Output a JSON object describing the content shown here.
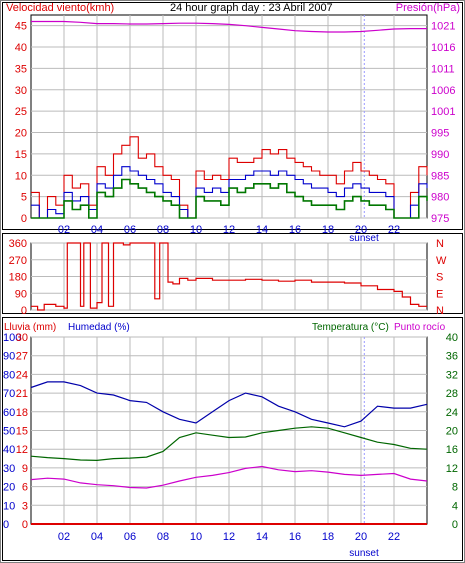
{
  "title": "24 hour graph day : 23 Abril 2007",
  "colors": {
    "wind": "#dd0000",
    "gust": "#dd0000",
    "windAvg": "#0000cc",
    "windGreen": "#007700",
    "pressure": "#cc00cc",
    "direction": "#dd0000",
    "humidity": "#0000aa",
    "temperature": "#006600",
    "dewpoint": "#cc00cc",
    "rain": "#dd0000",
    "grid": "#bbbbbb",
    "axis": "#000000"
  },
  "chart_data": [
    {
      "type": "line",
      "panel": "wind-pressure",
      "title": "24 hour graph day : 23 Abril 2007",
      "ylabel_left": "Velocidad viento(kmh)",
      "ylabel_right": "Presión(hPa)",
      "x_tick_labels": [
        "02",
        "04",
        "06",
        "08",
        "10",
        "12",
        "14",
        "16",
        "18",
        "20",
        "22"
      ],
      "x_tick_hours": [
        2,
        4,
        6,
        8,
        10,
        12,
        14,
        16,
        18,
        20,
        22
      ],
      "x_range_hours": [
        0,
        24
      ],
      "x_extra_label": "sunset",
      "sunset_hour": 20.2,
      "y_left_ticks": [
        0,
        5,
        10,
        15,
        20,
        25,
        30,
        35,
        40,
        45
      ],
      "y_left_range": [
        0,
        47.5
      ],
      "y_right_ticks": [
        975,
        980,
        985,
        990,
        995,
        1001,
        1006,
        1011,
        1016,
        1021
      ],
      "grid": true,
      "series": [
        {
          "role": "gust",
          "x": [
            0,
            0.5,
            1,
            1.5,
            2,
            2.5,
            3,
            3.5,
            4,
            4.5,
            5,
            5.5,
            6,
            6.5,
            7,
            7.5,
            8,
            8.5,
            9,
            9.5,
            10,
            10.5,
            11,
            11.5,
            12,
            12.5,
            13,
            13.5,
            14,
            14.5,
            15,
            15.5,
            16,
            16.5,
            17,
            17.5,
            18,
            18.5,
            19,
            19.5,
            20,
            20.5,
            21,
            21.5,
            22,
            22.5,
            23,
            23.5,
            24
          ],
          "values": [
            6,
            0,
            5,
            3,
            10,
            7,
            8,
            3,
            12,
            10,
            15,
            17,
            19,
            14,
            15,
            12,
            10,
            9,
            3,
            0,
            11,
            9,
            10,
            9,
            14,
            13,
            13,
            14,
            16,
            15,
            16,
            14,
            13,
            12,
            11,
            10,
            10,
            8,
            11,
            13,
            11,
            10,
            9,
            8,
            0,
            0,
            6,
            12,
            10
          ]
        },
        {
          "role": "average",
          "x": [
            0,
            0.5,
            1,
            1.5,
            2,
            2.5,
            3,
            3.5,
            4,
            4.5,
            5,
            5.5,
            6,
            6.5,
            7,
            7.5,
            8,
            8.5,
            9,
            9.5,
            10,
            10.5,
            11,
            11.5,
            12,
            12.5,
            13,
            13.5,
            14,
            14.5,
            15,
            15.5,
            16,
            16.5,
            17,
            17.5,
            18,
            18.5,
            19,
            19.5,
            20,
            20.5,
            21,
            21.5,
            22,
            22.5,
            23,
            23.5,
            24
          ],
          "values": [
            3,
            0,
            2,
            1,
            6,
            4,
            5,
            2,
            8,
            7,
            10,
            12,
            11,
            10,
            9,
            8,
            6,
            5,
            2,
            0,
            7,
            6,
            7,
            6,
            9,
            9,
            10,
            11,
            11,
            10,
            11,
            10,
            9,
            8,
            7,
            7,
            6,
            5,
            7,
            8,
            7,
            6,
            6,
            5,
            0,
            0,
            3,
            8,
            7
          ]
        },
        {
          "role": "low",
          "x": [
            0,
            0.5,
            1,
            1.5,
            2,
            2.5,
            3,
            3.5,
            4,
            4.5,
            5,
            5.5,
            6,
            6.5,
            7,
            7.5,
            8,
            8.5,
            9,
            9.5,
            10,
            10.5,
            11,
            11.5,
            12,
            12.5,
            13,
            13.5,
            14,
            14.5,
            15,
            15.5,
            16,
            16.5,
            17,
            17.5,
            18,
            18.5,
            19,
            19.5,
            20,
            20.5,
            21,
            21.5,
            22,
            22.5,
            23,
            23.5,
            24
          ],
          "values": [
            0,
            0,
            0,
            0,
            4,
            2,
            3,
            0,
            6,
            5,
            7,
            9,
            8,
            7,
            6,
            5,
            4,
            3,
            0,
            0,
            5,
            4,
            4,
            3,
            7,
            6,
            7,
            8,
            8,
            7,
            8,
            6,
            5,
            4,
            3,
            3,
            3,
            2,
            4,
            5,
            4,
            3,
            3,
            2,
            0,
            0,
            0,
            5,
            4
          ]
        },
        {
          "role": "pressure",
          "x": [
            0,
            1,
            2,
            3,
            4,
            5,
            6,
            7,
            8,
            9,
            10,
            11,
            12,
            13,
            14,
            15,
            16,
            17,
            18,
            19,
            20,
            21,
            22,
            23,
            24
          ],
          "values": [
            1022,
            1022,
            1022,
            1021.8,
            1021.5,
            1021.5,
            1021.4,
            1021.4,
            1021.5,
            1021.6,
            1021.6,
            1021.5,
            1021.3,
            1021.0,
            1020.6,
            1020.2,
            1019.8,
            1019.6,
            1019.5,
            1019.5,
            1019.6,
            1019.9,
            1020.2,
            1020.3,
            1020.3
          ]
        }
      ]
    },
    {
      "type": "line",
      "panel": "wind-direction",
      "y_left_ticks": [
        0,
        90,
        180,
        270,
        360
      ],
      "y_right_labels": [
        "N",
        "W",
        "S",
        "E",
        "N"
      ],
      "y_range": [
        0,
        360
      ],
      "grid": true,
      "series": [
        {
          "role": "direction",
          "x": [
            0,
            0.4,
            0.8,
            1.5,
            2,
            2.2,
            2.6,
            3.0,
            3.2,
            3.6,
            4.0,
            4.3,
            4.7,
            5.0,
            5.3,
            5.6,
            6.0,
            6.5,
            7.0,
            7.5,
            7.8,
            8.0,
            8.3,
            8.6,
            9.0,
            9.5,
            10,
            11,
            12,
            13,
            14,
            15,
            16,
            17,
            18,
            19,
            20,
            21,
            22,
            22.5,
            23,
            23.5,
            24
          ],
          "values": [
            20,
            0,
            30,
            20,
            10,
            360,
            360,
            20,
            360,
            10,
            40,
            360,
            20,
            360,
            360,
            350,
            360,
            360,
            360,
            60,
            360,
            360,
            150,
            140,
            170,
            160,
            170,
            160,
            160,
            165,
            160,
            155,
            160,
            150,
            150,
            145,
            130,
            110,
            100,
            70,
            30,
            20,
            20
          ]
        }
      ]
    },
    {
      "type": "line",
      "panel": "rain-humidity-temperature",
      "ylabel_left_1": "Lluvia (mm)",
      "ylabel_left_2": "Humedad (%)",
      "ylabel_right_1": "Temperatura (°C)",
      "ylabel_right_2": "Punto rocío",
      "y_humidity_ticks": [
        0,
        10,
        20,
        30,
        40,
        50,
        60,
        70,
        80,
        90,
        100
      ],
      "y_rain_ticks": [
        0,
        3,
        6,
        9,
        12,
        15,
        18,
        21,
        24,
        27,
        30
      ],
      "y_temp_ticks": [
        0,
        4,
        8,
        12,
        16,
        20,
        24,
        28,
        32,
        36,
        40
      ],
      "grid": true,
      "series": [
        {
          "role": "humidity",
          "x": [
            0,
            1,
            2,
            3,
            4,
            5,
            6,
            7,
            8,
            9,
            10,
            11,
            12,
            13,
            14,
            15,
            16,
            17,
            18,
            19,
            20,
            21,
            22,
            23,
            24
          ],
          "values": [
            73,
            76,
            76,
            74,
            70,
            69,
            66,
            65,
            60,
            56,
            54,
            60,
            66,
            70,
            68,
            63,
            60,
            56,
            54,
            52,
            55,
            63,
            62,
            62,
            64
          ]
        },
        {
          "role": "temperature",
          "x": [
            0,
            1,
            2,
            3,
            4,
            5,
            6,
            7,
            8,
            9,
            10,
            11,
            12,
            13,
            14,
            15,
            16,
            17,
            18,
            19,
            20,
            21,
            22,
            23,
            24
          ],
          "values": [
            14.5,
            14.2,
            14.0,
            13.7,
            13.6,
            14.0,
            14.1,
            14.3,
            15.5,
            18.5,
            19.5,
            19.0,
            18.5,
            18.6,
            19.5,
            20.0,
            20.5,
            20.8,
            20.5,
            19.5,
            18.5,
            17.5,
            17.0,
            16.2,
            16.0
          ]
        },
        {
          "role": "dewpoint",
          "x": [
            0,
            1,
            2,
            3,
            4,
            5,
            6,
            7,
            8,
            9,
            10,
            11,
            12,
            13,
            14,
            15,
            16,
            17,
            18,
            19,
            20,
            21,
            22,
            23,
            24
          ],
          "values": [
            9.5,
            9.8,
            9.6,
            8.8,
            8.4,
            8.2,
            7.8,
            7.7,
            8.3,
            9.2,
            10.0,
            10.4,
            11.0,
            11.9,
            12.3,
            11.6,
            11.2,
            11.4,
            11.1,
            10.6,
            10.4,
            10.6,
            10.8,
            9.6,
            9.2
          ]
        },
        {
          "role": "rain",
          "x": [
            0,
            24
          ],
          "values": [
            0,
            0
          ]
        }
      ]
    }
  ]
}
